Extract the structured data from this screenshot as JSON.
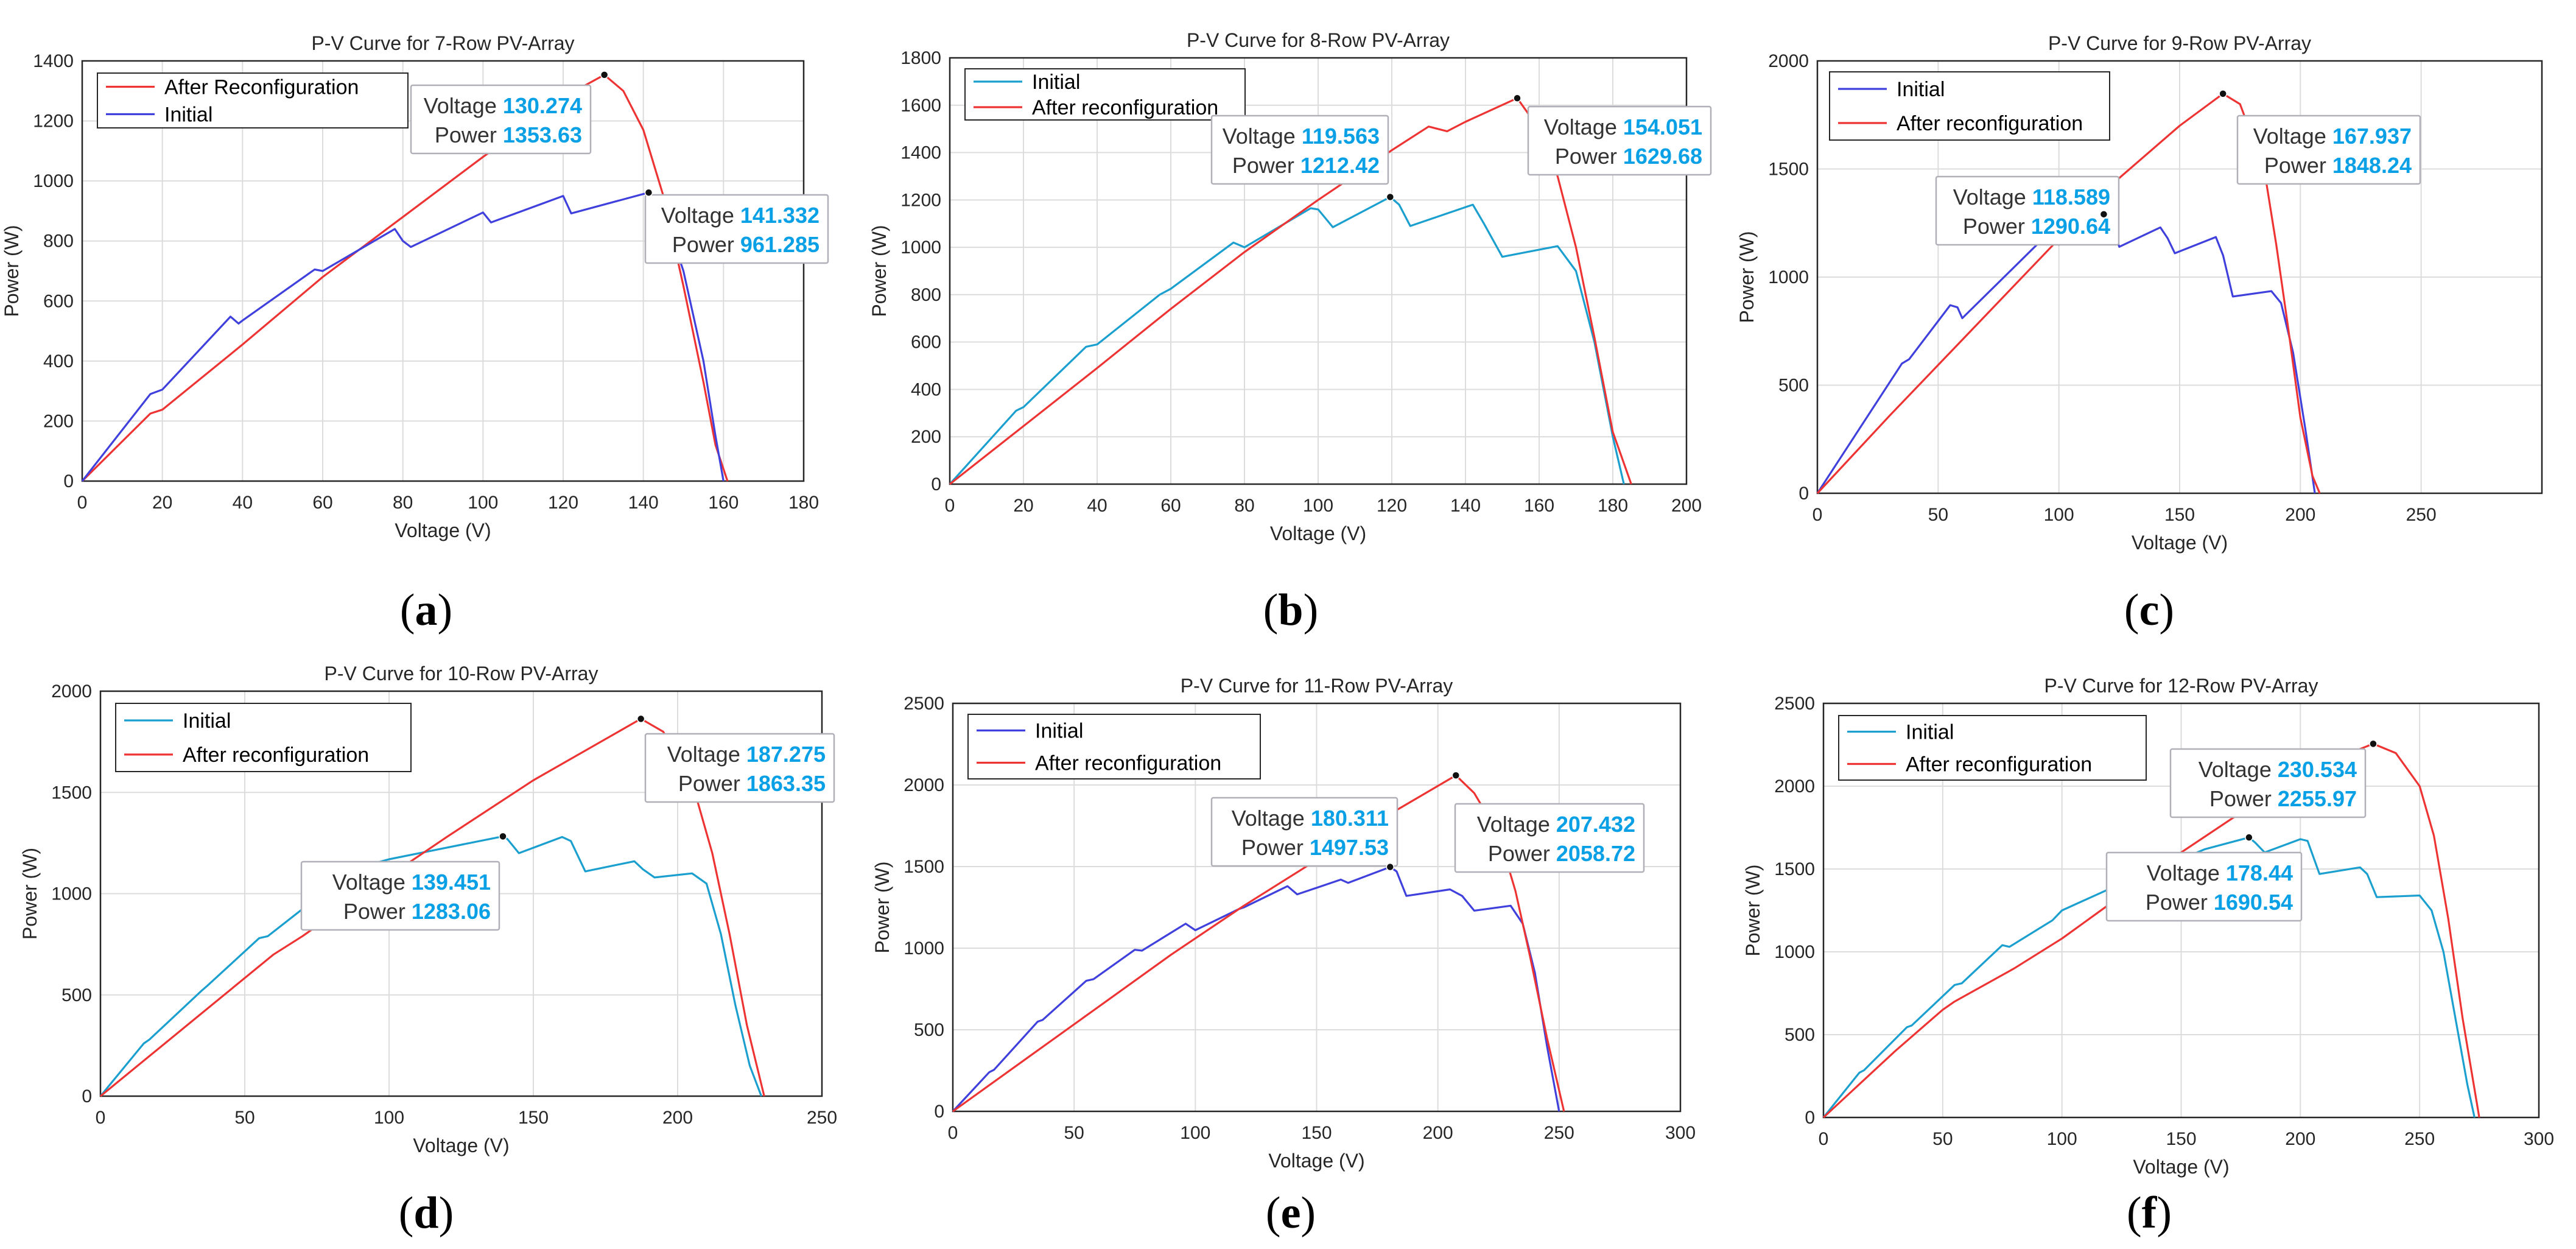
{
  "figure": {
    "panels": [
      {
        "id": "a",
        "caption": "(a)",
        "caption_letter": "a"
      },
      {
        "id": "b",
        "caption": "(b)",
        "caption_letter": "b"
      },
      {
        "id": "c",
        "caption": "(c)",
        "caption_letter": "c"
      },
      {
        "id": "d",
        "caption": "(d)",
        "caption_letter": "d"
      },
      {
        "id": "e",
        "caption": "(e)",
        "caption_letter": "e"
      },
      {
        "id": "f",
        "caption": "(f)",
        "caption_letter": "f"
      }
    ],
    "colors": {
      "initial_blue": "#4040dd",
      "initial_cyan": "#1a9fcf",
      "after": "#ee3333",
      "datatip_value": "#0aa0e6",
      "grid": "#dcdcdc"
    }
  },
  "chart_data": [
    {
      "type": "line",
      "title": "P-V Curve for 7-Row PV-Array",
      "xlabel": "Voltage (V)",
      "ylabel": "Power (W)",
      "xlim": [
        0,
        180
      ],
      "ylim": [
        0,
        1400
      ],
      "xticks": [
        0,
        20,
        40,
        60,
        80,
        100,
        120,
        140,
        160,
        180
      ],
      "yticks": [
        0,
        200,
        400,
        600,
        800,
        1000,
        1200,
        1400
      ],
      "legend": [
        "After Reconfiguration",
        "Initial"
      ],
      "series": [
        {
          "name": "After Reconfiguration",
          "color_key": "after",
          "x": [
            0,
            17,
            20,
            40,
            60,
            80,
            100,
            120,
            125,
            130.274,
            135,
            140,
            145,
            150,
            155,
            158,
            161
          ],
          "y": [
            0,
            225,
            238,
            455,
            680,
            880,
            1080,
            1270,
            1315,
            1353.63,
            1300,
            1170,
            950,
            650,
            330,
            120,
            0
          ]
        },
        {
          "name": "Initial",
          "color_key": "initial_blue",
          "x": [
            0,
            17,
            20,
            37,
            39,
            40,
            58,
            60,
            78,
            80,
            82,
            100,
            102,
            120,
            122,
            141.332,
            145,
            150,
            155,
            158,
            160
          ],
          "y": [
            0,
            290,
            305,
            548,
            525,
            535,
            705,
            700,
            840,
            800,
            780,
            895,
            862,
            950,
            892,
            961.285,
            900,
            700,
            400,
            150,
            0
          ]
        }
      ],
      "datatips": [
        {
          "series": "After Reconfiguration",
          "voltage_label": "Voltage",
          "voltage": "130.274",
          "power_label": "Power",
          "power": "1353.63",
          "x": 130.274,
          "y": 1353.63
        },
        {
          "series": "Initial",
          "voltage_label": "Voltage",
          "voltage": "141.332",
          "power_label": "Power",
          "power": "961.285",
          "x": 141.332,
          "y": 961.285
        }
      ]
    },
    {
      "type": "line",
      "title": "P-V Curve for 8-Row PV-Array",
      "xlabel": "Voltage (V)",
      "ylabel": "Power (W)",
      "xlim": [
        0,
        200
      ],
      "ylim": [
        0,
        1800
      ],
      "xticks": [
        0,
        20,
        40,
        60,
        80,
        100,
        120,
        140,
        160,
        180,
        200
      ],
      "yticks": [
        0,
        200,
        400,
        600,
        800,
        1000,
        1200,
        1400,
        1600,
        1800
      ],
      "legend": [
        "Initial",
        "After reconfiguration"
      ],
      "series": [
        {
          "name": "Initial",
          "color_key": "initial_cyan",
          "x": [
            0,
            18,
            20,
            37,
            40,
            57,
            60,
            77,
            80,
            98,
            100,
            104,
            119.563,
            122,
            125,
            142,
            145,
            150,
            165,
            170,
            175,
            180,
            183
          ],
          "y": [
            0,
            310,
            325,
            580,
            590,
            800,
            825,
            1020,
            1000,
            1165,
            1160,
            1085,
            1212.42,
            1180,
            1090,
            1180,
            1100,
            960,
            1005,
            900,
            600,
            200,
            0
          ]
        },
        {
          "name": "After reconfiguration",
          "color_key": "after",
          "x": [
            0,
            20,
            40,
            60,
            80,
            100,
            120,
            130,
            135,
            140,
            154.051,
            160,
            165,
            170,
            175,
            180,
            185
          ],
          "y": [
            0,
            245,
            490,
            740,
            980,
            1200,
            1410,
            1510,
            1490,
            1530,
            1629.68,
            1500,
            1300,
            1000,
            620,
            220,
            0
          ]
        }
      ],
      "datatips": [
        {
          "series": "Initial",
          "voltage_label": "Voltage",
          "voltage": "119.563",
          "power_label": "Power",
          "power": "1212.42",
          "x": 119.563,
          "y": 1212.42
        },
        {
          "series": "After reconfiguration",
          "voltage_label": "Voltage",
          "voltage": "154.051",
          "power_label": "Power",
          "power": "1629.68",
          "x": 154.051,
          "y": 1629.68
        }
      ]
    },
    {
      "type": "line",
      "title": "P-V Curve for 9-Row PV-Array",
      "xlabel": "Voltage (V)",
      "ylabel": "Power (W)",
      "xlim": [
        0,
        300
      ],
      "ylim": [
        0,
        2000
      ],
      "xticks": [
        0,
        50,
        100,
        150,
        200,
        250
      ],
      "yticks": [
        0,
        500,
        1000,
        1500,
        2000
      ],
      "legend": [
        "Initial",
        "After reconfiguration"
      ],
      "series": [
        {
          "name": "Initial",
          "color_key": "initial_blue",
          "x": [
            0,
            35,
            38,
            55,
            58,
            60,
            95,
            98,
            100,
            118.589,
            122,
            125,
            142,
            145,
            148,
            165,
            168,
            172,
            188,
            192,
            197,
            202,
            206
          ],
          "y": [
            0,
            600,
            620,
            870,
            860,
            810,
            1195,
            1180,
            1150,
            1290.64,
            1240,
            1140,
            1230,
            1180,
            1110,
            1185,
            1100,
            910,
            935,
            880,
            650,
            300,
            0
          ]
        },
        {
          "name": "After reconfiguration",
          "color_key": "after",
          "x": [
            0,
            30,
            60,
            90,
            120,
            150,
            167.937,
            175,
            185,
            190,
            195,
            200,
            205,
            208
          ],
          "y": [
            0,
            360,
            710,
            1060,
            1410,
            1700,
            1848.24,
            1800,
            1500,
            1150,
            760,
            350,
            80,
            0
          ]
        }
      ],
      "datatips": [
        {
          "series": "Initial",
          "voltage_label": "Voltage",
          "voltage": "118.589",
          "power_label": "Power",
          "power": "1290.64",
          "x": 118.589,
          "y": 1290.64
        },
        {
          "series": "After reconfiguration",
          "voltage_label": "Voltage",
          "voltage": "167.937",
          "power_label": "Power",
          "power": "1848.24",
          "x": 167.937,
          "y": 1848.24
        }
      ]
    },
    {
      "type": "line",
      "title": "P-V Curve for 10-Row PV-Array",
      "xlabel": "Voltage (V)",
      "ylabel": "Power (W)",
      "xlim": [
        0,
        250
      ],
      "ylim": [
        0,
        2000
      ],
      "xticks": [
        0,
        50,
        100,
        150,
        200,
        250
      ],
      "yticks": [
        0,
        500,
        1000,
        1500,
        2000
      ],
      "legend": [
        "Initial",
        "After reconfiguration"
      ],
      "series": [
        {
          "name": "Initial",
          "color_key": "initial_cyan",
          "x": [
            0,
            15,
            17,
            35,
            37,
            55,
            58,
            75,
            78,
            95,
            100,
            139.451,
            141,
            145,
            160,
            163,
            168,
            185,
            188,
            192,
            205,
            210,
            215,
            220,
            225,
            229
          ],
          "y": [
            0,
            260,
            280,
            520,
            545,
            780,
            790,
            980,
            990,
            1150,
            1170,
            1283.06,
            1270,
            1200,
            1280,
            1260,
            1110,
            1160,
            1120,
            1080,
            1100,
            1050,
            800,
            450,
            150,
            0
          ]
        },
        {
          "name": "After reconfiguration",
          "color_key": "after",
          "x": [
            0,
            30,
            60,
            70,
            90,
            120,
            150,
            187.275,
            195,
            205,
            212,
            218,
            224,
            230
          ],
          "y": [
            0,
            350,
            700,
            790,
            990,
            1280,
            1560,
            1863.35,
            1800,
            1550,
            1200,
            800,
            350,
            0
          ]
        }
      ],
      "datatips": [
        {
          "series": "After reconfiguration",
          "voltage_label": "Voltage",
          "voltage": "187.275",
          "power_label": "Power",
          "power": "1863.35",
          "x": 187.275,
          "y": 1863.35
        },
        {
          "series": "Initial",
          "voltage_label": "Voltage",
          "voltage": "139.451",
          "power_label": "Power",
          "power": "1283.06",
          "x": 139.451,
          "y": 1283.06
        }
      ]
    },
    {
      "type": "line",
      "title": "P-V Curve for 11-Row PV-Array",
      "xlabel": "Voltage (V)",
      "ylabel": "Power (W)",
      "xlim": [
        0,
        300
      ],
      "ylim": [
        0,
        2500
      ],
      "xticks": [
        0,
        50,
        100,
        150,
        200,
        250,
        300
      ],
      "yticks": [
        0,
        500,
        1000,
        1500,
        2000,
        2500
      ],
      "legend": [
        "Initial",
        "After reconfiguration"
      ],
      "series": [
        {
          "name": "Initial",
          "color_key": "initial_blue",
          "x": [
            0,
            15,
            17,
            35,
            37,
            55,
            58,
            75,
            78,
            96,
            100,
            118,
            120,
            138,
            142,
            160,
            163,
            180.311,
            183,
            187,
            205,
            210,
            215,
            230,
            235,
            240,
            245,
            250
          ],
          "y": [
            0,
            240,
            255,
            550,
            560,
            800,
            810,
            990,
            985,
            1150,
            1110,
            1240,
            1250,
            1380,
            1330,
            1420,
            1400,
            1497.53,
            1470,
            1320,
            1360,
            1320,
            1230,
            1260,
            1150,
            850,
            400,
            0
          ]
        },
        {
          "name": "After reconfiguration",
          "color_key": "after",
          "x": [
            0,
            30,
            60,
            90,
            120,
            150,
            180,
            207.432,
            215,
            225,
            232,
            238,
            245,
            252
          ],
          "y": [
            0,
            320,
            640,
            960,
            1260,
            1540,
            1820,
            2058.72,
            1950,
            1700,
            1350,
            950,
            450,
            0
          ]
        }
      ],
      "datatips": [
        {
          "series": "Initial",
          "voltage_label": "Voltage",
          "voltage": "180.311",
          "power_label": "Power",
          "power": "1497.53",
          "x": 180.311,
          "y": 1497.53
        },
        {
          "series": "After reconfiguration",
          "voltage_label": "Voltage",
          "voltage": "207.432",
          "power_label": "Power",
          "power": "2058.72",
          "x": 207.432,
          "y": 2058.72
        }
      ]
    },
    {
      "type": "line",
      "title": "P-V Curve for 12-Row PV-Array",
      "xlabel": "Voltage (V)",
      "ylabel": "Power (W)",
      "xlim": [
        0,
        300
      ],
      "ylim": [
        0,
        2500
      ],
      "xticks": [
        0,
        50,
        100,
        150,
        200,
        250,
        300
      ],
      "yticks": [
        0,
        500,
        1000,
        1500,
        2000,
        2500
      ],
      "legend": [
        "Initial",
        "After reconfiguration"
      ],
      "series": [
        {
          "name": "Initial",
          "color_key": "initial_cyan",
          "x": [
            0,
            15,
            17,
            35,
            37,
            55,
            58,
            75,
            78,
            96,
            100,
            120,
            140,
            160,
            178.44,
            181,
            185,
            200,
            203,
            208,
            225,
            228,
            232,
            250,
            255,
            260,
            265,
            270,
            273
          ],
          "y": [
            0,
            270,
            285,
            545,
            555,
            800,
            810,
            1040,
            1030,
            1190,
            1250,
            1380,
            1500,
            1620,
            1690.54,
            1660,
            1600,
            1680,
            1670,
            1470,
            1510,
            1470,
            1330,
            1340,
            1250,
            1000,
            600,
            200,
            0
          ]
        },
        {
          "name": "After reconfiguration",
          "color_key": "after",
          "x": [
            0,
            30,
            50,
            55,
            80,
            100,
            150,
            200,
            230.534,
            240,
            250,
            256,
            262,
            268,
            275
          ],
          "y": [
            0,
            400,
            650,
            700,
            900,
            1080,
            1600,
            2080,
            2255.97,
            2200,
            2000,
            1700,
            1200,
            600,
            0
          ]
        }
      ],
      "datatips": [
        {
          "series": "After reconfiguration",
          "voltage_label": "Voltage",
          "voltage": "230.534",
          "power_label": "Power",
          "power": "2255.97",
          "x": 230.534,
          "y": 2255.97
        },
        {
          "series": "Initial",
          "voltage_label": "Voltage",
          "voltage": "178.44",
          "power_label": "Power",
          "power": "1690.54",
          "x": 178.44,
          "y": 1690.54
        }
      ]
    }
  ]
}
